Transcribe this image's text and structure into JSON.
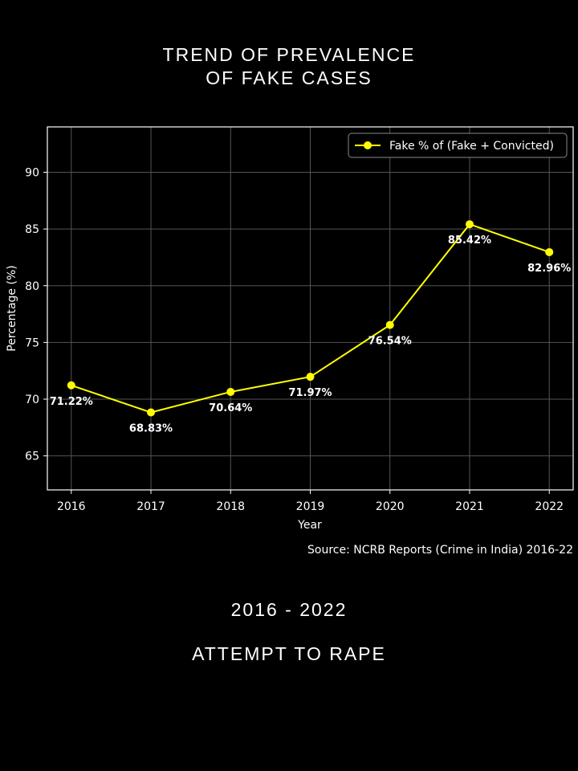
{
  "header": {
    "title_line1": "TREND OF PREVALENCE",
    "title_line2": "OF FAKE CASES"
  },
  "footer": {
    "period": "2016 - 2022",
    "crime": "ATTEMPT TO RAPE"
  },
  "chart_data": {
    "type": "line",
    "x": [
      2016,
      2017,
      2018,
      2019,
      2020,
      2021,
      2022
    ],
    "series": [
      {
        "name": "Fake % of (Fake + Convicted)",
        "values": [
          71.22,
          68.83,
          70.64,
          71.97,
          76.54,
          85.42,
          82.96
        ],
        "color": "#ffff00"
      }
    ],
    "data_labels": [
      "71.22%",
      "68.83%",
      "70.64%",
      "71.97%",
      "76.54%",
      "85.42%",
      "82.96%"
    ],
    "xlabel": "Year",
    "ylabel": "Percentage (%)",
    "yticks": [
      65,
      70,
      75,
      80,
      85,
      90
    ],
    "ylim": [
      62,
      94
    ],
    "xlim": [
      2015.7,
      2022.3
    ],
    "grid": true,
    "legend_position": "top-right",
    "source": "Source: NCRB Reports (Crime in India) 2016-22"
  }
}
